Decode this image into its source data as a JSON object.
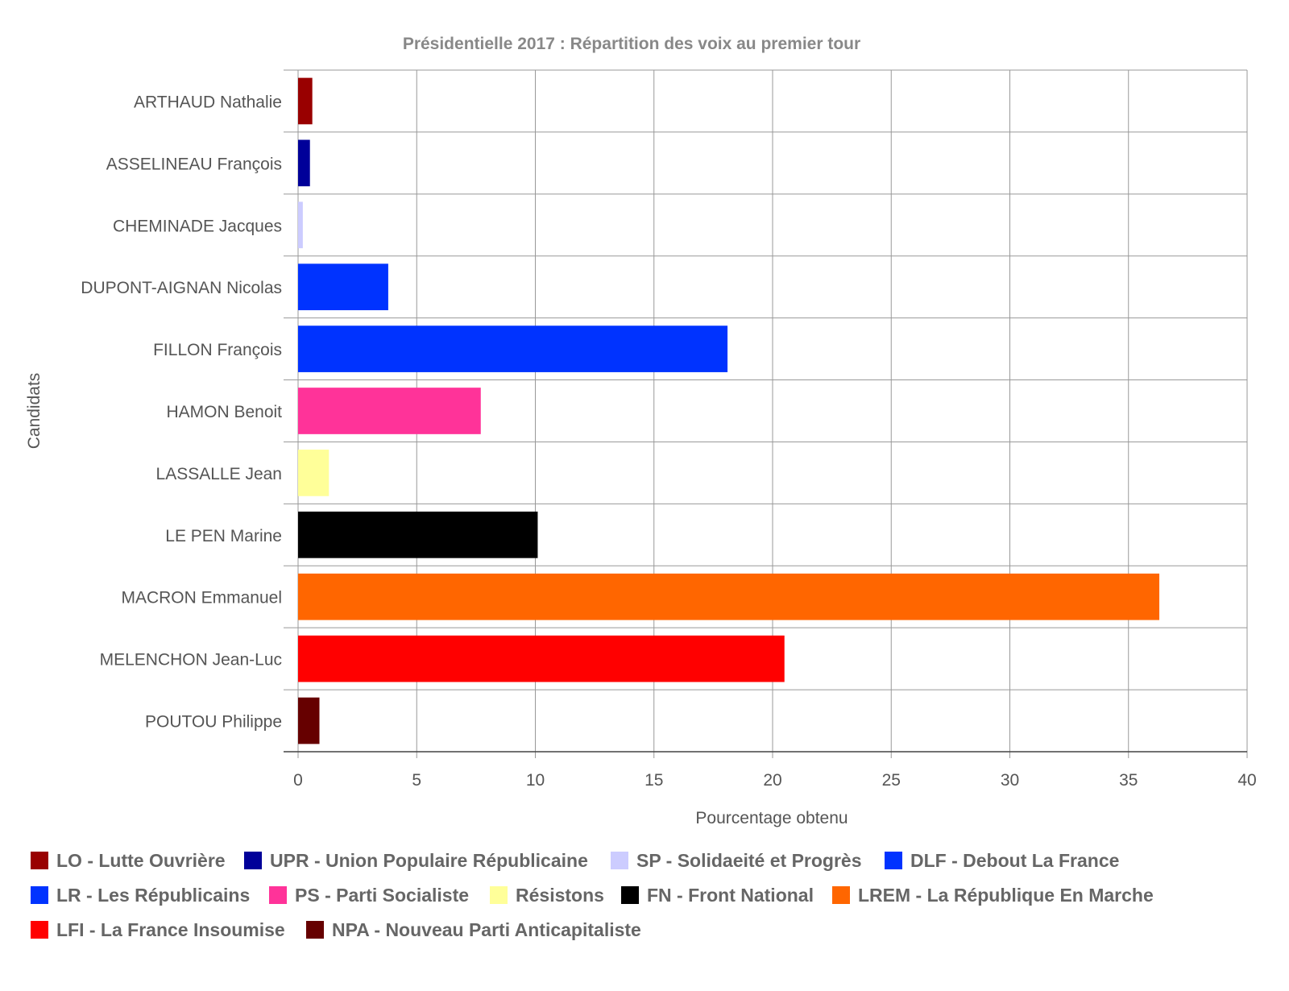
{
  "chart_data": {
    "type": "bar",
    "orientation": "horizontal",
    "title": "Présidentielle 2017 : Répartition des voix au premier tour",
    "xlabel": "Pourcentage obtenu",
    "ylabel": "Candidats",
    "xlim": [
      0,
      40
    ],
    "x_ticks": [
      "0",
      "5",
      "10",
      "15",
      "20",
      "25",
      "30",
      "35",
      "40"
    ],
    "grid": true,
    "legend_position": "bottom",
    "categories": [
      "ARTHAUD Nathalie",
      "ASSELINEAU François",
      "CHEMINADE Jacques",
      "DUPONT-AIGNAN Nicolas",
      "FILLON François",
      "HAMON Benoit",
      "LASSALLE Jean",
      "LE PEN Marine",
      "MACRON Emmanuel",
      "MELENCHON Jean-Luc",
      "POUTOU Philippe"
    ],
    "values": [
      0.6,
      0.5,
      0.2,
      3.8,
      18.1,
      7.7,
      1.3,
      10.1,
      36.3,
      20.5,
      0.9
    ],
    "colors": [
      "#990000",
      "#000099",
      "#ccccff",
      "#0033ff",
      "#0033ff",
      "#ff3399",
      "#ffff99",
      "#000000",
      "#ff6600",
      "#ff0000",
      "#660000"
    ],
    "legend": [
      {
        "label": "LO - Lutte Ouvrière",
        "color": "#990000"
      },
      {
        "label": "UPR - Union Populaire Républicaine",
        "color": "#000099"
      },
      {
        "label": "SP - Solidaeité et Progrès",
        "color": "#ccccff"
      },
      {
        "label": "DLF - Debout La France",
        "color": "#0033ff"
      },
      {
        "label": "LR - Les Républicains",
        "color": "#0033ff"
      },
      {
        "label": "PS - Parti Socialiste",
        "color": "#ff3399"
      },
      {
        "label": "Résistons",
        "color": "#ffff99"
      },
      {
        "label": "FN - Front National",
        "color": "#000000"
      },
      {
        "label": "LREM - La République En Marche",
        "color": "#ff6600"
      },
      {
        "label": "LFI - La France Insoumise",
        "color": "#ff0000"
      },
      {
        "label": "NPA - Nouveau Parti Anticapitaliste",
        "color": "#660000"
      }
    ]
  }
}
